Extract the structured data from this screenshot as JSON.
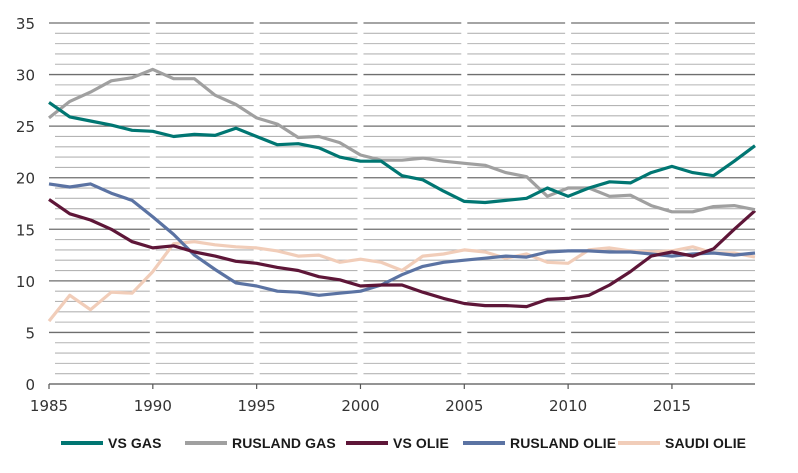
{
  "chart_data": {
    "type": "line",
    "title": "",
    "xlabel": "",
    "ylabel": "",
    "xlim": [
      1985,
      2019
    ],
    "ylim": [
      0,
      35
    ],
    "grid": true,
    "legend_position": "bottom",
    "x_ticks": [
      "1985",
      "1990",
      "1995",
      "2000",
      "2005",
      "2010",
      "2015"
    ],
    "x_tick_values": [
      1985,
      1990,
      1995,
      2000,
      2005,
      2010,
      2015
    ],
    "y_ticks": [
      "0",
      "5",
      "10",
      "15",
      "20",
      "25",
      "30",
      "35"
    ],
    "y_tick_values": [
      0,
      5,
      10,
      15,
      20,
      25,
      30,
      35
    ],
    "x": [
      1985,
      1986,
      1987,
      1988,
      1989,
      1990,
      1991,
      1992,
      1993,
      1994,
      1995,
      1996,
      1997,
      1998,
      1999,
      2000,
      2001,
      2002,
      2003,
      2004,
      2005,
      2006,
      2007,
      2008,
      2009,
      2010,
      2011,
      2012,
      2013,
      2014,
      2015,
      2016,
      2017,
      2018,
      2019
    ],
    "series": [
      {
        "name": "VS GAS",
        "color": "#007672",
        "values": [
          27.3,
          25.9,
          25.5,
          25.1,
          24.6,
          24.5,
          24.0,
          24.2,
          24.1,
          24.8,
          24.0,
          23.2,
          23.3,
          22.9,
          22.0,
          21.6,
          21.6,
          20.2,
          19.8,
          18.7,
          17.7,
          17.6,
          17.8,
          18.0,
          19.0,
          18.2,
          19.0,
          19.6,
          19.5,
          20.5,
          21.1,
          20.5,
          20.2,
          21.6,
          23.1
        ]
      },
      {
        "name": "RUSLAND GAS",
        "color": "#a0a0a0",
        "values": [
          25.8,
          27.4,
          28.3,
          29.4,
          29.7,
          30.5,
          29.6,
          29.6,
          28.0,
          27.1,
          25.8,
          25.2,
          23.9,
          24.0,
          23.4,
          22.2,
          21.7,
          21.7,
          21.9,
          21.6,
          21.4,
          21.2,
          20.5,
          20.1,
          18.2,
          19.0,
          19.0,
          18.2,
          18.3,
          17.3,
          16.7,
          16.7,
          17.2,
          17.3,
          16.9
        ]
      },
      {
        "name": "VS OLIE",
        "color": "#5e1638",
        "values": [
          17.9,
          16.5,
          15.9,
          15.0,
          13.8,
          13.2,
          13.4,
          12.8,
          12.4,
          11.9,
          11.7,
          11.3,
          11.0,
          10.4,
          10.1,
          9.5,
          9.6,
          9.6,
          8.9,
          8.3,
          7.8,
          7.6,
          7.6,
          7.5,
          8.2,
          8.3,
          8.6,
          9.6,
          10.9,
          12.4,
          12.8,
          12.4,
          13.1,
          15.0,
          16.8
        ]
      },
      {
        "name": "RUSLAND OLIE",
        "color": "#5b73a3",
        "values": [
          19.4,
          19.1,
          19.4,
          18.5,
          17.8,
          16.2,
          14.5,
          12.5,
          11.1,
          9.8,
          9.5,
          9.0,
          8.9,
          8.6,
          8.8,
          9.0,
          9.6,
          10.6,
          11.4,
          11.8,
          12.0,
          12.2,
          12.4,
          12.3,
          12.8,
          12.9,
          12.9,
          12.8,
          12.8,
          12.6,
          12.4,
          12.6,
          12.7,
          12.5,
          12.7
        ]
      },
      {
        "name": "SAUDI OLIE",
        "color": "#f1cdb9",
        "values": [
          6.1,
          8.6,
          7.2,
          8.9,
          8.8,
          10.9,
          13.6,
          13.8,
          13.5,
          13.3,
          13.2,
          12.9,
          12.4,
          12.5,
          11.8,
          12.1,
          11.8,
          11.0,
          12.4,
          12.6,
          13.0,
          12.8,
          12.2,
          12.6,
          11.8,
          11.7,
          13.0,
          13.2,
          12.9,
          12.8,
          12.9,
          13.3,
          12.7,
          12.7,
          12.3
        ]
      }
    ]
  }
}
